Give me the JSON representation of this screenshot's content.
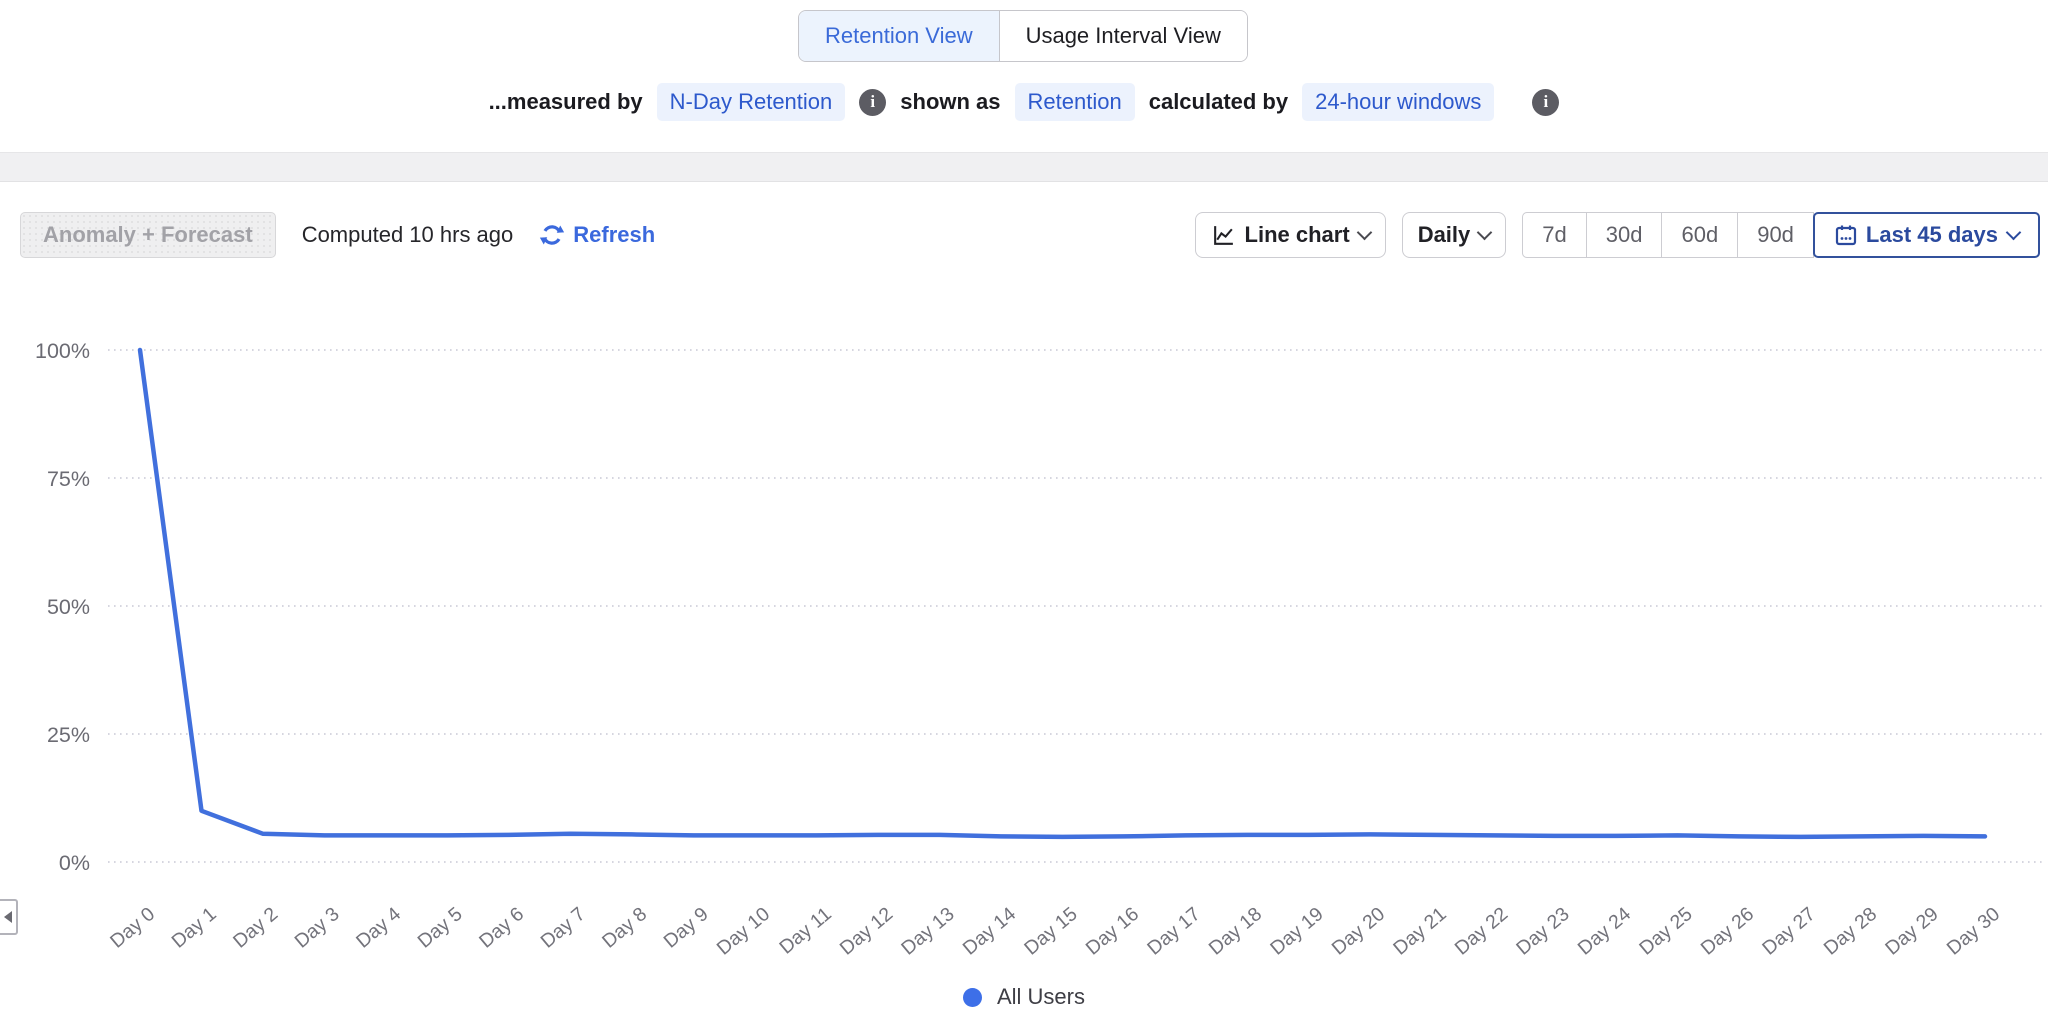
{
  "view_toggle": {
    "options": [
      {
        "label": "Retention View",
        "selected": true
      },
      {
        "label": "Usage Interval View",
        "selected": false
      }
    ]
  },
  "subtitle": {
    "measured_by_label": "...measured by",
    "measured_by_value": "N-Day Retention",
    "shown_as_label": "shown as",
    "shown_as_value": "Retention",
    "calculated_by_label": "calculated by",
    "calculated_by_value": "24-hour windows",
    "info_icon_glyph": "i"
  },
  "toolbar": {
    "anomaly_forecast_label": "Anomaly + Forecast",
    "computed_status": "Computed 10 hrs ago",
    "refresh_label": "Refresh",
    "chart_type_label": "Line chart",
    "granularity_label": "Daily",
    "range_presets": [
      "7d",
      "30d",
      "60d",
      "90d"
    ],
    "date_range_label": "Last 45 days"
  },
  "legend": {
    "label": "All Users",
    "color": "#3D6FE8"
  },
  "colors": {
    "accent_blue": "#3A6AD8",
    "line_blue": "#4170DD",
    "badge_bg": "#ECF2FD",
    "badge_text": "#2D59CC",
    "selected_range_border": "#32519C",
    "selected_range_text": "#2B4A9E",
    "grid_dot": "#C9C9D6",
    "axis_label_gray": "#6B6B73"
  },
  "chart_data": {
    "type": "line",
    "title": "",
    "x_categories": [
      "Day 0",
      "Day 1",
      "Day 2",
      "Day 3",
      "Day 4",
      "Day 5",
      "Day 6",
      "Day 7",
      "Day 8",
      "Day 9",
      "Day 10",
      "Day 11",
      "Day 12",
      "Day 13",
      "Day 14",
      "Day 15",
      "Day 16",
      "Day 17",
      "Day 18",
      "Day 19",
      "Day 20",
      "Day 21",
      "Day 22",
      "Day 23",
      "Day 24",
      "Day 25",
      "Day 26",
      "Day 27",
      "Day 28",
      "Day 29",
      "Day 30"
    ],
    "series": [
      {
        "name": "All Users",
        "color": "#4170DD",
        "values": [
          100,
          10,
          5.5,
          5.2,
          5.2,
          5.2,
          5.3,
          5.5,
          5.4,
          5.2,
          5.2,
          5.2,
          5.3,
          5.3,
          5.0,
          4.9,
          5.0,
          5.2,
          5.3,
          5.3,
          5.4,
          5.3,
          5.2,
          5.1,
          5.1,
          5.2,
          5.0,
          4.9,
          5.0,
          5.1,
          5.0
        ]
      }
    ],
    "ylim": [
      0,
      100
    ],
    "ytick_values": [
      0,
      25,
      50,
      75,
      100
    ],
    "ytick_labels": [
      "0%",
      "25%",
      "50%",
      "75%",
      "100%"
    ],
    "grid": "horizontal-dotted",
    "legend_position": "bottom-center"
  }
}
